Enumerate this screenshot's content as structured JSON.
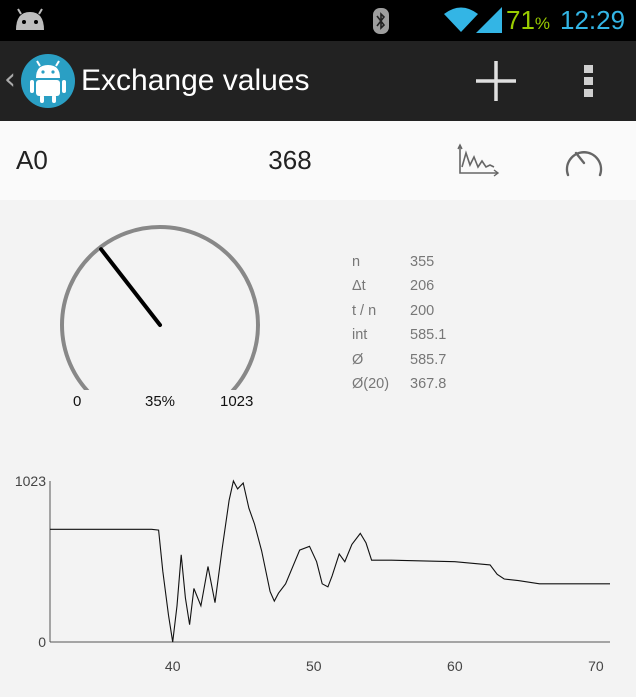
{
  "status_bar": {
    "battery": "71",
    "battery_unit": "%",
    "time": "12:29",
    "icons": [
      "android-notification-icon",
      "bluetooth-icon",
      "wifi-icon",
      "cell-signal-icon"
    ]
  },
  "action_bar": {
    "back": "‹",
    "title": "Exchange values",
    "icons": [
      "android-app-icon",
      "add-icon",
      "overflow-menu-icon"
    ]
  },
  "value_row": {
    "channel": "A0",
    "value": "368",
    "icons": [
      "line-graph-view-icon",
      "gauge-view-icon"
    ]
  },
  "gauge": {
    "min": "0",
    "max": "1023",
    "percent_label": "35%",
    "value": 368,
    "range": [
      0,
      1023
    ]
  },
  "stats": [
    {
      "label": "n",
      "value": "355"
    },
    {
      "label": "Δt",
      "value": "206"
    },
    {
      "label": "t / n",
      "value": "200"
    },
    {
      "label": "int",
      "value": "585.1"
    },
    {
      "label": "Ø",
      "value": "585.7"
    },
    {
      "label": "Ø(20)",
      "value": "367.8"
    }
  ],
  "colors": {
    "status_bar_bg": "#000000",
    "battery_text": "#99cc00",
    "clock_text": "#33b5e5",
    "action_bar_bg": "#222222",
    "app_icon_circle": "#2a9fc4",
    "gauge_arc": "#888888",
    "gauge_needle": "#000000"
  },
  "chart_data": {
    "type": "line",
    "x_ticks": [
      40,
      50,
      60,
      70
    ],
    "y_ticks": [
      0,
      1023
    ],
    "xlim": [
      31.3,
      71
    ],
    "ylim": [
      0,
      1023
    ],
    "grid": false,
    "series": [
      {
        "x": [
          31.3,
          38.5,
          39.0,
          39.3,
          39.7,
          40.0,
          40.3,
          40.6,
          40.9,
          41.2,
          41.5,
          42.0,
          42.5,
          43.0,
          43.5,
          44.0,
          44.3,
          44.6,
          45.0,
          45.4,
          45.8,
          46.3,
          46.9,
          47.2,
          47.5,
          48.0,
          49.0,
          49.7,
          50.2,
          50.6,
          51.0,
          51.3,
          51.8,
          52.2,
          52.7,
          53.3,
          53.7,
          54.1,
          54.5,
          55.5,
          60.0,
          62.5,
          63.0,
          63.5,
          64.5,
          66.0,
          68.0,
          71.0
        ],
        "y": [
          716,
          716,
          711,
          450,
          170,
          0,
          230,
          554,
          280,
          110,
          340,
          230,
          480,
          250,
          590,
          900,
          1023,
          973,
          1010,
          850,
          750,
          580,
          320,
          260,
          310,
          370,
          584,
          608,
          510,
          370,
          350,
          420,
          560,
          510,
          620,
          690,
          630,
          520,
          520,
          520,
          510,
          490,
          430,
          400,
          390,
          370,
          370,
          370
        ]
      }
    ]
  }
}
